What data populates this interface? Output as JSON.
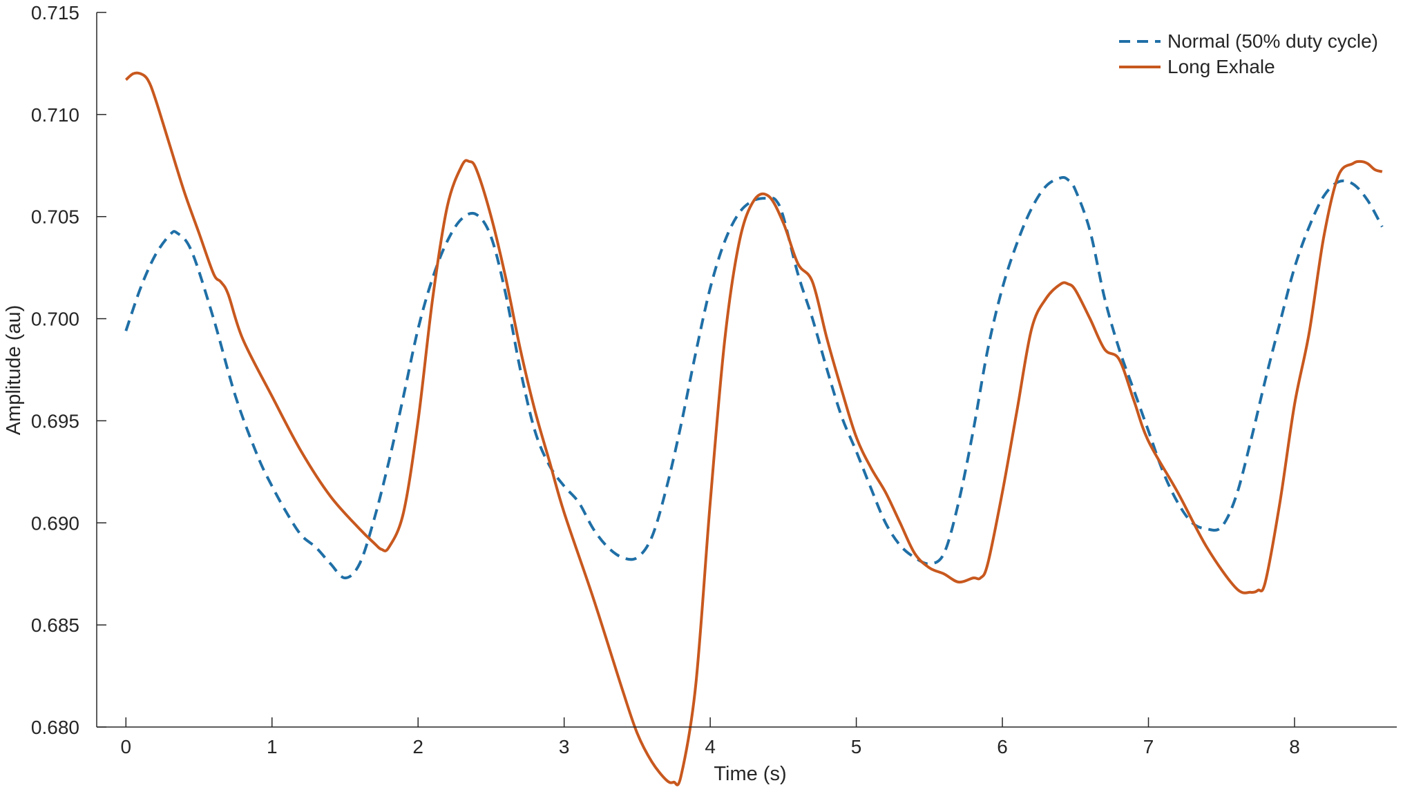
{
  "chart_data": {
    "type": "line",
    "title": "",
    "xlabel": "Time (s)",
    "ylabel": "Amplitude (au)",
    "xlim": [
      -0.2,
      8.7
    ],
    "ylim": [
      0.68,
      0.715
    ],
    "xticks": [
      0,
      1,
      2,
      3,
      4,
      5,
      6,
      7,
      8
    ],
    "xtick_labels": [
      "0",
      "1",
      "2",
      "3",
      "4",
      "5",
      "6",
      "7",
      "8"
    ],
    "yticks": [
      0.68,
      0.685,
      0.69,
      0.695,
      0.7,
      0.705,
      0.71,
      0.715
    ],
    "ytick_labels": [
      "0.680",
      "0.685",
      "0.690",
      "0.695",
      "0.700",
      "0.705",
      "0.710",
      "0.715"
    ],
    "grid": false,
    "legend_position": "top-right",
    "series": [
      {
        "name": "Normal (50% duty cycle)",
        "color": "#1f6fa6",
        "style": "dashed",
        "x": [
          0.0,
          0.1,
          0.2,
          0.3,
          0.35,
          0.45,
          0.6,
          0.75,
          0.9,
          1.0,
          1.1,
          1.2,
          1.3,
          1.4,
          1.5,
          1.6,
          1.7,
          1.8,
          1.9,
          2.0,
          2.1,
          2.2,
          2.3,
          2.4,
          2.5,
          2.6,
          2.7,
          2.8,
          2.9,
          3.0,
          3.1,
          3.2,
          3.3,
          3.4,
          3.5,
          3.6,
          3.7,
          3.8,
          3.9,
          4.0,
          4.1,
          4.2,
          4.3,
          4.4,
          4.45,
          4.5,
          4.6,
          4.7,
          4.8,
          4.9,
          5.0,
          5.1,
          5.2,
          5.3,
          5.4,
          5.5,
          5.6,
          5.7,
          5.8,
          5.9,
          6.0,
          6.1,
          6.2,
          6.3,
          6.4,
          6.45,
          6.5,
          6.6,
          6.7,
          6.8,
          6.9,
          7.0,
          7.1,
          7.2,
          7.3,
          7.4,
          7.5,
          7.6,
          7.7,
          7.8,
          7.9,
          8.0,
          8.1,
          8.2,
          8.3,
          8.4,
          8.5,
          8.6
        ],
        "y": [
          0.6994,
          0.7015,
          0.7031,
          0.7041,
          0.7042,
          0.7033,
          0.7,
          0.6962,
          0.6933,
          0.6918,
          0.6905,
          0.6894,
          0.6888,
          0.688,
          0.6873,
          0.688,
          0.6902,
          0.693,
          0.6962,
          0.6995,
          0.702,
          0.7038,
          0.7049,
          0.7051,
          0.704,
          0.7012,
          0.6975,
          0.6945,
          0.6928,
          0.6918,
          0.691,
          0.6897,
          0.6888,
          0.6883,
          0.6883,
          0.6893,
          0.6917,
          0.6948,
          0.6983,
          0.7015,
          0.7038,
          0.7052,
          0.7058,
          0.7059,
          0.7058,
          0.705,
          0.7022,
          0.7,
          0.6975,
          0.6952,
          0.6935,
          0.6917,
          0.69,
          0.6889,
          0.6883,
          0.688,
          0.6885,
          0.691,
          0.6945,
          0.6985,
          0.7015,
          0.7037,
          0.7054,
          0.7065,
          0.7069,
          0.7068,
          0.7063,
          0.7043,
          0.701,
          0.6985,
          0.6965,
          0.6945,
          0.6925,
          0.691,
          0.69,
          0.6897,
          0.6898,
          0.6913,
          0.694,
          0.697,
          0.6998,
          0.7025,
          0.7045,
          0.706,
          0.7067,
          0.7066,
          0.7058,
          0.7045
        ]
      },
      {
        "name": "Long Exhale",
        "color": "#c8581e",
        "style": "solid",
        "x": [
          0.0,
          0.05,
          0.1,
          0.15,
          0.2,
          0.3,
          0.4,
          0.5,
          0.6,
          0.65,
          0.7,
          0.8,
          1.0,
          1.2,
          1.4,
          1.6,
          1.7,
          1.75,
          1.8,
          1.9,
          2.0,
          2.1,
          2.2,
          2.3,
          2.35,
          2.4,
          2.5,
          2.6,
          2.7,
          2.8,
          2.9,
          3.0,
          3.2,
          3.4,
          3.5,
          3.6,
          3.7,
          3.75,
          3.8,
          3.9,
          4.0,
          4.1,
          4.2,
          4.3,
          4.4,
          4.5,
          4.6,
          4.7,
          4.8,
          4.9,
          5.0,
          5.1,
          5.2,
          5.3,
          5.4,
          5.5,
          5.6,
          5.7,
          5.8,
          5.85,
          5.9,
          6.0,
          6.1,
          6.2,
          6.3,
          6.4,
          6.45,
          6.5,
          6.6,
          6.7,
          6.8,
          6.9,
          7.0,
          7.2,
          7.4,
          7.6,
          7.7,
          7.75,
          7.8,
          7.9,
          8.0,
          8.1,
          8.2,
          8.3,
          8.4,
          8.45,
          8.5,
          8.55,
          8.6
        ],
        "y": [
          0.7117,
          0.712,
          0.712,
          0.7117,
          0.7108,
          0.7085,
          0.7062,
          0.7042,
          0.7022,
          0.7018,
          0.7012,
          0.699,
          0.6962,
          0.6935,
          0.6913,
          0.6897,
          0.689,
          0.6887,
          0.6888,
          0.6905,
          0.695,
          0.701,
          0.7055,
          0.7075,
          0.7077,
          0.7073,
          0.705,
          0.702,
          0.6985,
          0.6955,
          0.693,
          0.6905,
          0.6863,
          0.6818,
          0.6797,
          0.6783,
          0.6774,
          0.6773,
          0.6776,
          0.682,
          0.691,
          0.699,
          0.7038,
          0.7058,
          0.706,
          0.7047,
          0.7027,
          0.7018,
          0.699,
          0.6965,
          0.6942,
          0.6927,
          0.6915,
          0.69,
          0.6885,
          0.6878,
          0.6875,
          0.6871,
          0.6873,
          0.6873,
          0.688,
          0.6915,
          0.6955,
          0.6995,
          0.701,
          0.7017,
          0.7017,
          0.7014,
          0.7,
          0.6985,
          0.698,
          0.696,
          0.694,
          0.6915,
          0.6888,
          0.6868,
          0.6866,
          0.6867,
          0.6871,
          0.691,
          0.6958,
          0.6993,
          0.704,
          0.707,
          0.7076,
          0.7077,
          0.7076,
          0.7073,
          0.7072
        ]
      }
    ]
  }
}
